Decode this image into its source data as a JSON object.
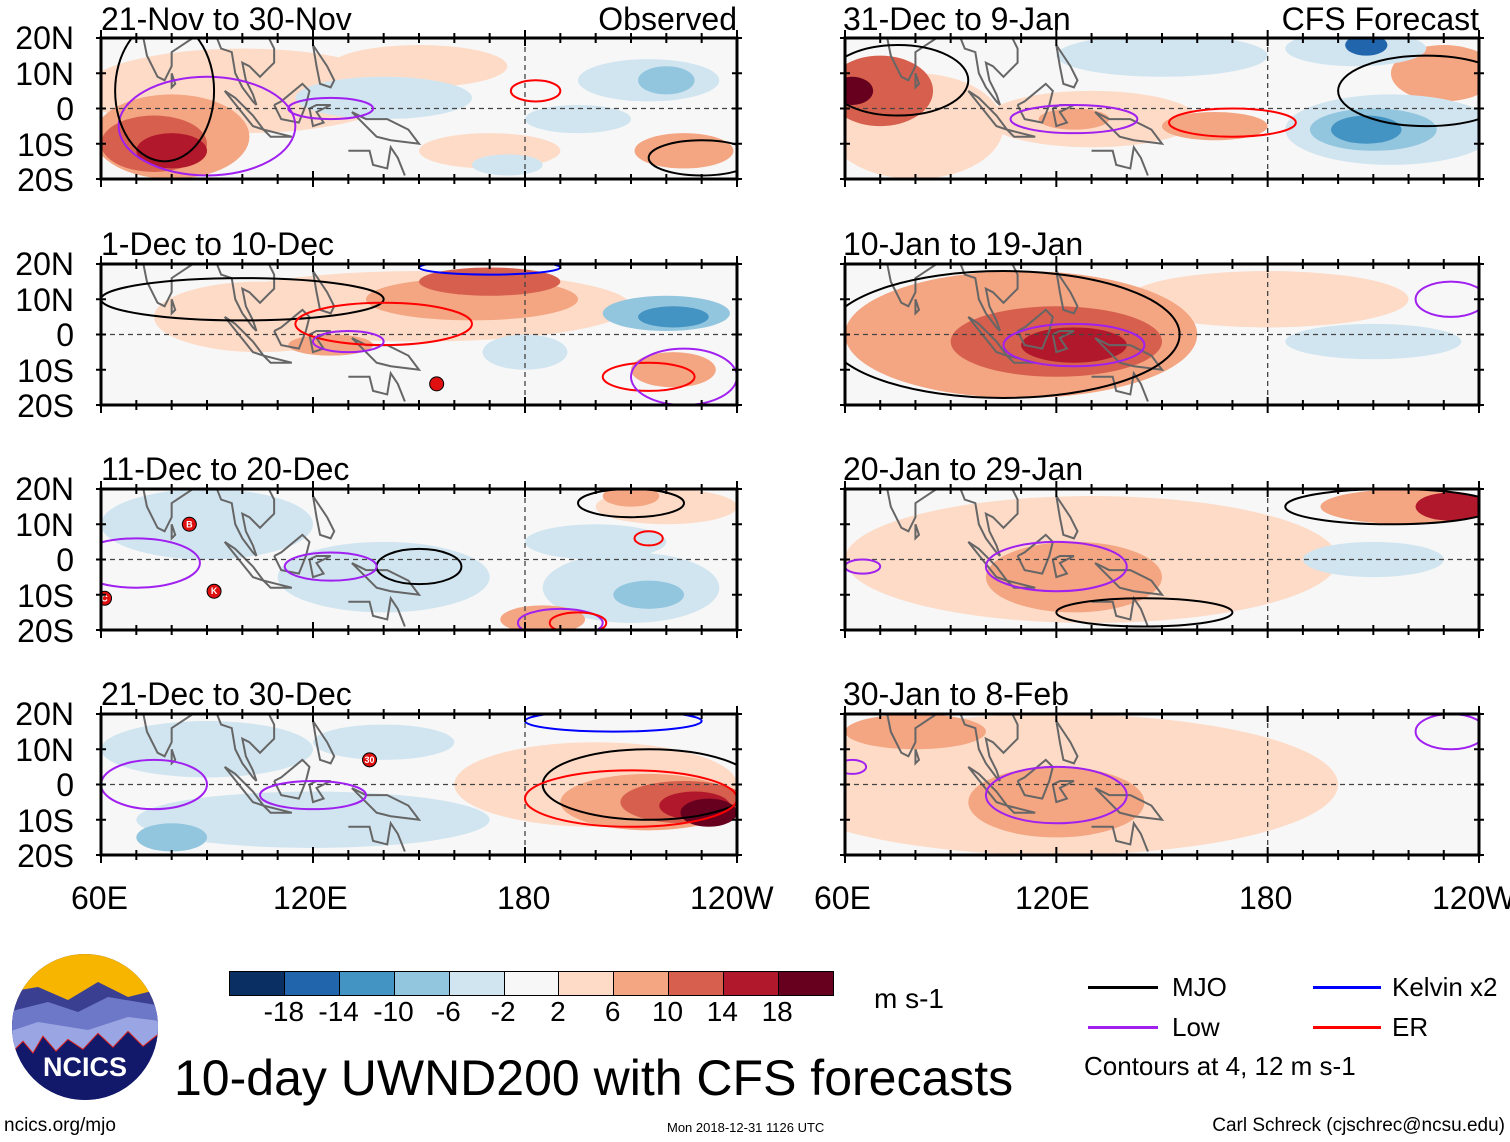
{
  "figure": {
    "title": "10-day UWND200 with CFS forecasts",
    "site": "ncics.org/mjo",
    "timestamp": "Mon 2018-12-31 1126 UTC",
    "author": "Carl Schreck (cjschrec@ncsu.edu)",
    "logo_text": "NCICS"
  },
  "labels": {
    "observed": "Observed",
    "forecast": "CFS Forecast"
  },
  "axes": {
    "lat_labels": [
      "20N",
      "10N",
      "0",
      "10S",
      "20S"
    ],
    "lon_labels": [
      "60E",
      "120E",
      "180",
      "120W"
    ],
    "lon_range": [
      60,
      240
    ],
    "lat_range": [
      -20,
      20
    ]
  },
  "colorbar": {
    "unit": "m s-1",
    "tick_labels": [
      "-18",
      "-14",
      "-10",
      "-6",
      "-2",
      "2",
      "6",
      "10",
      "14",
      "18"
    ],
    "colors": [
      "#0a2f63",
      "#2166ac",
      "#4393c3",
      "#92c5de",
      "#d1e5f0",
      "#f7f7f7",
      "#fddbc7",
      "#f4a582",
      "#d6604d",
      "#b2182b",
      "#67001f"
    ]
  },
  "legend": {
    "items": [
      {
        "label": "MJO",
        "color": "#000000"
      },
      {
        "label": "Kelvin x2",
        "color": "#0000ff"
      },
      {
        "label": "Low",
        "color": "#a020f0"
      },
      {
        "label": "ER",
        "color": "#ff0000"
      }
    ],
    "note": "Contours at 4, 12 m s-1"
  },
  "chart_data": {
    "type": "heatmap",
    "variable": "200-hPa zonal wind anomaly (m s-1), 10-day means",
    "feature_format": "[lon, lat, lon_radius_deg, lat_radius_deg, value_m_s-1]",
    "contour_format": "[lon, lat, lon_radius_deg, lat_radius_deg, filter]",
    "panels": [
      {
        "title": "21-Nov to 30-Nov",
        "source": "observed",
        "features": [
          [
            100,
            5,
            45,
            12,
            4
          ],
          [
            150,
            12,
            25,
            6,
            4
          ],
          [
            170,
            -12,
            20,
            5,
            4
          ],
          [
            80,
            -8,
            22,
            12,
            8
          ],
          [
            75,
            -10,
            15,
            8,
            12
          ],
          [
            80,
            -12,
            10,
            5,
            16
          ],
          [
            140,
            3,
            25,
            6,
            -4
          ],
          [
            215,
            8,
            20,
            6,
            -4
          ],
          [
            220,
            8,
            8,
            4,
            -8
          ],
          [
            195,
            -3,
            15,
            4,
            -4
          ],
          [
            225,
            -12,
            14,
            5,
            6
          ],
          [
            175,
            -16,
            10,
            3,
            -4
          ]
        ],
        "contours": [
          [
            90,
            -5,
            25,
            14,
            "Low"
          ],
          [
            125,
            0,
            12,
            3,
            "Low"
          ],
          [
            183,
            5,
            7,
            3,
            "ER"
          ],
          [
            230,
            -14,
            15,
            5,
            "MJO"
          ],
          [
            78,
            5,
            14,
            20,
            "MJO"
          ]
        ],
        "cyclones": []
      },
      {
        "title": "1-Dec to 10-Dec",
        "source": "observed",
        "features": [
          [
            150,
            8,
            60,
            10,
            4
          ],
          [
            105,
            5,
            30,
            10,
            4
          ],
          [
            165,
            10,
            30,
            6,
            8
          ],
          [
            170,
            15,
            20,
            4,
            12
          ],
          [
            125,
            -3,
            12,
            3,
            8
          ],
          [
            220,
            6,
            18,
            5,
            -8
          ],
          [
            222,
            5,
            10,
            3,
            -12
          ],
          [
            222,
            -10,
            12,
            5,
            8
          ],
          [
            180,
            -5,
            12,
            5,
            -4
          ]
        ],
        "contours": [
          [
            100,
            10,
            40,
            6,
            "MJO"
          ],
          [
            140,
            3,
            25,
            6,
            "ER"
          ],
          [
            215,
            -12,
            13,
            4,
            "ER"
          ],
          [
            130,
            -2,
            10,
            3,
            "Low"
          ],
          [
            225,
            -12,
            15,
            8,
            "Low"
          ],
          [
            170,
            19,
            20,
            2,
            "Kelvin x2"
          ]
        ],
        "cyclones": [
          [
            155,
            -14,
            ""
          ]
        ]
      },
      {
        "title": "11-Dec to 20-Dec",
        "source": "observed",
        "features": [
          [
            90,
            10,
            30,
            10,
            -4
          ],
          [
            140,
            -5,
            30,
            10,
            -4
          ],
          [
            210,
            -8,
            25,
            10,
            -4
          ],
          [
            215,
            -10,
            10,
            4,
            -8
          ],
          [
            200,
            5,
            20,
            5,
            -4
          ],
          [
            220,
            15,
            20,
            5,
            4
          ],
          [
            210,
            18,
            8,
            3,
            8
          ],
          [
            185,
            -17,
            12,
            4,
            6
          ]
        ],
        "contours": [
          [
            150,
            -2,
            12,
            5,
            "MJO"
          ],
          [
            125,
            -2,
            13,
            4,
            "Low"
          ],
          [
            210,
            16,
            15,
            4,
            "MJO"
          ],
          [
            190,
            -18,
            12,
            4,
            "Low"
          ],
          [
            195,
            -18,
            8,
            3,
            "ER"
          ],
          [
            215,
            6,
            4,
            2,
            "ER"
          ],
          [
            70,
            -1,
            18,
            7,
            "Low"
          ]
        ],
        "cyclones": [
          [
            85,
            10,
            "B"
          ],
          [
            92,
            -9,
            "K"
          ],
          [
            61,
            -11,
            "C"
          ]
        ]
      },
      {
        "title": "21-Dec to 30-Dec",
        "source": "observed",
        "features": [
          [
            90,
            10,
            30,
            8,
            -4
          ],
          [
            120,
            -10,
            50,
            8,
            -4
          ],
          [
            80,
            -15,
            10,
            4,
            -8
          ],
          [
            140,
            12,
            20,
            5,
            -4
          ],
          [
            200,
            0,
            40,
            12,
            4
          ],
          [
            215,
            -5,
            25,
            8,
            8
          ],
          [
            225,
            -5,
            18,
            6,
            12
          ],
          [
            228,
            -6,
            10,
            4,
            16
          ],
          [
            232,
            -8,
            8,
            4,
            18
          ]
        ],
        "contours": [
          [
            215,
            0,
            30,
            10,
            "MJO"
          ],
          [
            210,
            -4,
            30,
            8,
            "ER"
          ],
          [
            120,
            -3,
            15,
            4,
            "Low"
          ],
          [
            75,
            0,
            15,
            7,
            "Low"
          ],
          [
            205,
            18,
            25,
            3,
            "Kelvin x2"
          ]
        ],
        "cyclones": [
          [
            136,
            7,
            "30"
          ]
        ]
      },
      {
        "title": "31-Dec to 9-Jan",
        "source": "forecast",
        "features": [
          [
            80,
            -5,
            25,
            15,
            4
          ],
          [
            130,
            -3,
            30,
            8,
            4
          ],
          [
            70,
            5,
            15,
            10,
            10
          ],
          [
            62,
            5,
            6,
            4,
            18
          ],
          [
            125,
            -3,
            10,
            3,
            8
          ],
          [
            165,
            -5,
            15,
            4,
            6
          ],
          [
            230,
            10,
            15,
            8,
            6
          ],
          [
            150,
            15,
            30,
            6,
            -4
          ],
          [
            215,
            -6,
            30,
            10,
            -6
          ],
          [
            210,
            -6,
            18,
            6,
            -10
          ],
          [
            208,
            -6,
            10,
            4,
            -14
          ],
          [
            205,
            17,
            20,
            5,
            -6
          ],
          [
            208,
            18,
            6,
            3,
            -18
          ]
        ],
        "contours": [
          [
            170,
            -4,
            18,
            4,
            "ER"
          ],
          [
            125,
            -3,
            18,
            4,
            "Low"
          ],
          [
            75,
            8,
            20,
            10,
            "MJO"
          ],
          [
            225,
            5,
            25,
            10,
            "MJO"
          ]
        ],
        "cyclones": []
      },
      {
        "title": "10-Jan to 19-Jan",
        "source": "forecast",
        "features": [
          [
            180,
            10,
            40,
            8,
            2
          ],
          [
            110,
            0,
            50,
            18,
            6
          ],
          [
            90,
            5,
            20,
            10,
            8
          ],
          [
            120,
            -2,
            30,
            10,
            10
          ],
          [
            125,
            -3,
            15,
            5,
            14
          ],
          [
            210,
            -2,
            25,
            5,
            -4
          ]
        ],
        "contours": [
          [
            105,
            0,
            50,
            18,
            "MJO"
          ],
          [
            125,
            -3,
            20,
            6,
            "Low"
          ],
          [
            232,
            10,
            10,
            5,
            "Low"
          ]
        ],
        "cyclones": []
      },
      {
        "title": "20-Jan to 29-Jan",
        "source": "forecast",
        "features": [
          [
            130,
            0,
            70,
            18,
            4
          ],
          [
            125,
            -5,
            25,
            10,
            6
          ],
          [
            220,
            15,
            25,
            5,
            8
          ],
          [
            232,
            15,
            10,
            4,
            14
          ],
          [
            210,
            0,
            20,
            5,
            -4
          ],
          [
            205,
            -1,
            8,
            3,
            -6
          ]
        ],
        "contours": [
          [
            120,
            -2,
            20,
            7,
            "Low"
          ],
          [
            145,
            -15,
            25,
            4,
            "MJO"
          ],
          [
            215,
            15,
            30,
            5,
            "MJO"
          ],
          [
            65,
            -2,
            5,
            2,
            "Low"
          ]
        ],
        "cyclones": []
      },
      {
        "title": "30-Jan to 8-Feb",
        "source": "forecast",
        "features": [
          [
            120,
            0,
            80,
            20,
            4
          ],
          [
            120,
            -5,
            25,
            10,
            6
          ],
          [
            80,
            15,
            20,
            5,
            8
          ]
        ],
        "contours": [
          [
            120,
            -3,
            20,
            8,
            "Low"
          ],
          [
            232,
            15,
            10,
            5,
            "Low"
          ],
          [
            62,
            5,
            4,
            2,
            "Low"
          ]
        ],
        "cyclones": []
      }
    ]
  }
}
